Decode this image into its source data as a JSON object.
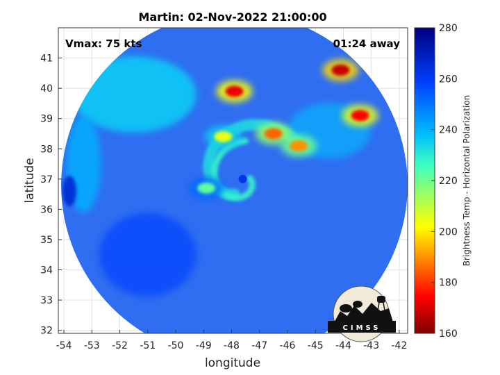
{
  "chart_data": {
    "type": "heatmap",
    "title": "Martin: 02-Nov-2022 21:00:00",
    "annotations": {
      "vmax": "Vmax: 75 kts",
      "time_away": "01:24 away"
    },
    "xlabel": "longitude",
    "ylabel": "latitude",
    "xlim": [
      -54.2,
      -41.7
    ],
    "ylim": [
      31.9,
      42.0
    ],
    "x_ticks": [
      -54,
      -53,
      -52,
      -51,
      -50,
      -49,
      -48,
      -47,
      -46,
      -45,
      -44,
      -43,
      -42
    ],
    "y_ticks": [
      32,
      33,
      34,
      35,
      36,
      37,
      38,
      39,
      40,
      41
    ],
    "grid": true,
    "colorbar": {
      "label": "Brightness Temp - Horizontal Polarization",
      "range": [
        160,
        280
      ],
      "ticks": [
        160,
        180,
        200,
        220,
        240,
        260,
        280
      ],
      "colormap": "jet"
    },
    "swath": {
      "center_lon": -47.9,
      "center_lat": 36.8,
      "radius_deg": 6.2
    },
    "storm_center": {
      "lon": -47.6,
      "lat": 37.0
    },
    "cold_features": [
      {
        "lon": -47.9,
        "lat": 39.9,
        "value": 172
      },
      {
        "lon": -48.3,
        "lat": 38.4,
        "value": 205
      },
      {
        "lon": -46.5,
        "lat": 38.5,
        "value": 185
      },
      {
        "lon": -45.6,
        "lat": 38.1,
        "value": 190
      },
      {
        "lon": -44.1,
        "lat": 40.6,
        "value": 168
      },
      {
        "lon": -43.4,
        "lat": 39.1,
        "value": 175
      },
      {
        "lon": -48.9,
        "lat": 36.7,
        "value": 222
      }
    ],
    "logo": {
      "text": "CIMSS"
    }
  }
}
